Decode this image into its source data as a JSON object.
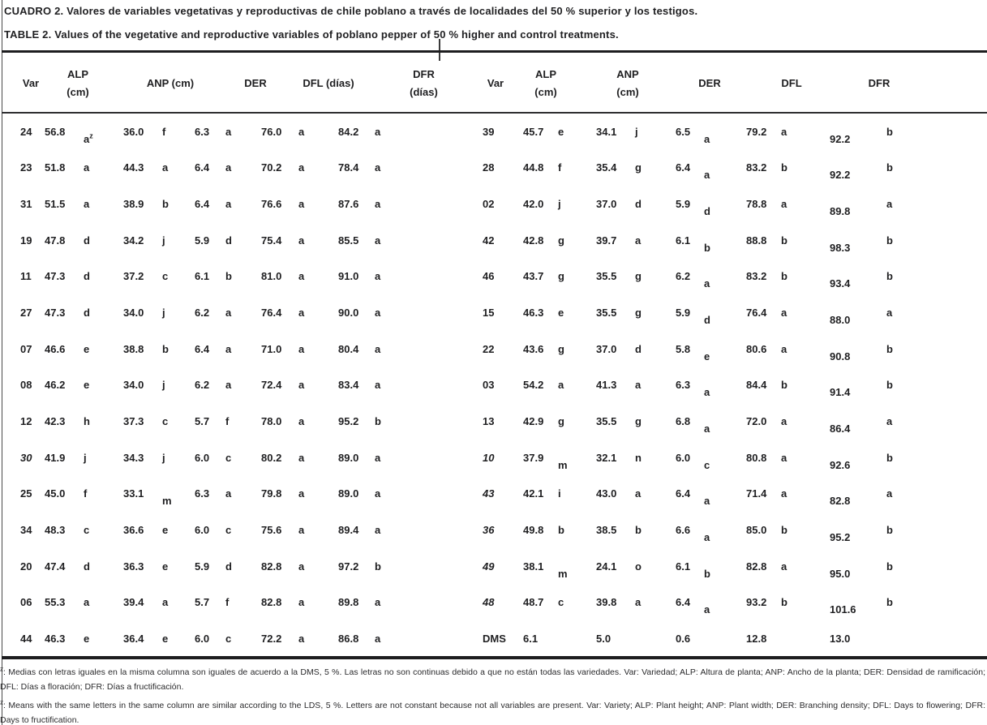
{
  "titles": {
    "spanish": "CUADRO 2. Valores de variables vegetativas y reproductivas de chile poblano a través de localidades del 50 % superior y los testigos.",
    "english": "TABLE 2. Values of the vegetative and reproductive variables of poblano pepper of 50 % higher and control treatments."
  },
  "table": {
    "left": {
      "headers": {
        "var": "Var",
        "alp_line1": "ALP",
        "alp_line2": "(cm)",
        "anp": "ANP (cm)",
        "der": "DER",
        "dfl": "DFL (días)",
        "dfr_line1": "DFR",
        "dfr_line2": "(días)"
      },
      "rows": [
        {
          "var": "24",
          "alp": "56.8",
          "alp_l": "a",
          "alp_sup": "z",
          "anp": "36.0",
          "anp_l": "f",
          "der": "6.3",
          "der_l": "a",
          "dfl": "76.0",
          "dfl_l": "a",
          "dfr": "84.2",
          "dfr_l": "a",
          "drops": [
            "alp_l"
          ]
        },
        {
          "var": "23",
          "alp": "51.8",
          "alp_l": "a",
          "anp": "44.3",
          "anp_l": "a",
          "der": "6.4",
          "der_l": "a",
          "dfl": "70.2",
          "dfl_l": "a",
          "dfr": "78.4",
          "dfr_l": "a"
        },
        {
          "var": "31",
          "alp": "51.5",
          "alp_l": "a",
          "anp": "38.9",
          "anp_l": "b",
          "der": "6.4",
          "der_l": "a",
          "dfl": "76.6",
          "dfl_l": "a",
          "dfr": "87.6",
          "dfr_l": "a"
        },
        {
          "var": "19",
          "alp": "47.8",
          "alp_l": "d",
          "anp": "34.2",
          "anp_l": "j",
          "der": "5.9",
          "der_l": "d",
          "dfl": "75.4",
          "dfl_l": "a",
          "dfr": "85.5",
          "dfr_l": "a"
        },
        {
          "var": "11",
          "alp": "47.3",
          "alp_l": "d",
          "anp": "37.2",
          "anp_l": "c",
          "der": "6.1",
          "der_l": "b",
          "dfl": "81.0",
          "dfl_l": "a",
          "dfr": "91.0",
          "dfr_l": "a"
        },
        {
          "var": "27",
          "alp": "47.3",
          "alp_l": "d",
          "anp": "34.0",
          "anp_l": "j",
          "der": "6.2",
          "der_l": "a",
          "dfl": "76.4",
          "dfl_l": "a",
          "dfr": "90.0",
          "dfr_l": "a"
        },
        {
          "var": "07",
          "alp": "46.6",
          "alp_l": "e",
          "anp": "38.8",
          "anp_l": "b",
          "der": "6.4",
          "der_l": "a",
          "dfl": "71.0",
          "dfl_l": "a",
          "dfr": "80.4",
          "dfr_l": "a"
        },
        {
          "var": "08",
          "alp": "46.2",
          "alp_l": "e",
          "anp": "34.0",
          "anp_l": "j",
          "der": "6.2",
          "der_l": "a",
          "dfl": "72.4",
          "dfl_l": "a",
          "dfr": "83.4",
          "dfr_l": "a"
        },
        {
          "var": "12",
          "alp": "42.3",
          "alp_l": "h",
          "anp": "37.3",
          "anp_l": "c",
          "der": "5.7",
          "der_l": "f",
          "dfl": "78.0",
          "dfl_l": "a",
          "dfr": "95.2",
          "dfr_l": "b"
        },
        {
          "var": "30",
          "italic": true,
          "alp": "41.9",
          "alp_l": "j",
          "anp": "34.3",
          "anp_l": "j",
          "der": "6.0",
          "der_l": "c",
          "dfl": "80.2",
          "dfl_l": "a",
          "dfr": "89.0",
          "dfr_l": "a"
        },
        {
          "var": "25",
          "alp": "45.0",
          "alp_l": "f",
          "anp": "33.1",
          "anp_l": "m",
          "der": "6.3",
          "der_l": "a",
          "dfl": "79.8",
          "dfl_l": "a",
          "dfr": "89.0",
          "dfr_l": "a",
          "drops": [
            "anp_l"
          ]
        },
        {
          "var": "34",
          "alp": "48.3",
          "alp_l": "c",
          "anp": "36.6",
          "anp_l": "e",
          "der": "6.0",
          "der_l": "c",
          "dfl": "75.6",
          "dfl_l": "a",
          "dfr": "89.4",
          "dfr_l": "a"
        },
        {
          "var": "20",
          "alp": "47.4",
          "alp_l": "d",
          "anp": "36.3",
          "anp_l": "e",
          "der": "5.9",
          "der_l": "d",
          "dfl": "82.8",
          "dfl_l": "a",
          "dfr": "97.2",
          "dfr_l": "b"
        },
        {
          "var": "06",
          "alp": "55.3",
          "alp_l": "a",
          "anp": "39.4",
          "anp_l": "a",
          "der": "5.7",
          "der_l": "f",
          "dfl": "82.8",
          "dfl_l": "a",
          "dfr": "89.8",
          "dfr_l": "a"
        },
        {
          "var": "44",
          "alp": "46.3",
          "alp_l": "e",
          "anp": "36.4",
          "anp_l": "e",
          "der": "6.0",
          "der_l": "c",
          "dfl": "72.2",
          "dfl_l": "a",
          "dfr": "86.8",
          "dfr_l": "a"
        }
      ]
    },
    "right": {
      "headers": {
        "var": "Var",
        "alp_line1": "ALP",
        "alp_line2": "(cm)",
        "anp_line1": "ANP",
        "anp_line2": "(cm)",
        "der": "DER",
        "dfl": "DFL",
        "dfr": "DFR"
      },
      "rows": [
        {
          "var": "39",
          "alp": "45.7",
          "alp_l": "e",
          "anp": "34.1",
          "anp_l": "j",
          "der": "6.5",
          "der_l": "a",
          "dfl": "79.2",
          "dfl_l": "a",
          "dfr": "92.2",
          "dfr_l": "b",
          "drops": [
            "der_l",
            "dfr"
          ]
        },
        {
          "var": "28",
          "alp": "44.8",
          "alp_l": "f",
          "anp": "35.4",
          "anp_l": "g",
          "der": "6.4",
          "der_l": "a",
          "dfl": "83.2",
          "dfl_l": "b",
          "dfr": "92.2",
          "dfr_l": "b",
          "drops": [
            "der_l",
            "dfr"
          ]
        },
        {
          "var": "02",
          "alp": "42.0",
          "alp_l": "j",
          "anp": "37.0",
          "anp_l": "d",
          "der": "5.9",
          "der_l": "d",
          "dfl": "78.8",
          "dfl_l": "a",
          "dfr": "89.8",
          "dfr_l": "a",
          "drops": [
            "der_l",
            "dfr"
          ]
        },
        {
          "var": "42",
          "alp": "42.8",
          "alp_l": "g",
          "anp": "39.7",
          "anp_l": "a",
          "der": "6.1",
          "der_l": "b",
          "dfl": "88.8",
          "dfl_l": "b",
          "dfr": "98.3",
          "dfr_l": "b",
          "drops": [
            "der_l",
            "dfr"
          ]
        },
        {
          "var": "46",
          "alp": "43.7",
          "alp_l": "g",
          "anp": "35.5",
          "anp_l": "g",
          "der": "6.2",
          "der_l": "a",
          "dfl": "83.2",
          "dfl_l": "b",
          "dfr": "93.4",
          "dfr_l": "b",
          "drops": [
            "der_l",
            "dfr"
          ]
        },
        {
          "var": "15",
          "alp": "46.3",
          "alp_l": "e",
          "anp": "35.5",
          "anp_l": "g",
          "der": "5.9",
          "der_l": "d",
          "dfl": "76.4",
          "dfl_l": "a",
          "dfr": "88.0",
          "dfr_l": "a",
          "drops": [
            "der_l",
            "dfr"
          ]
        },
        {
          "var": "22",
          "alp": "43.6",
          "alp_l": "g",
          "anp": "37.0",
          "anp_l": "d",
          "der": "5.8",
          "der_l": "e",
          "dfl": "80.6",
          "dfl_l": "a",
          "dfr": "90.8",
          "dfr_l": "b",
          "drops": [
            "der_l",
            "dfr"
          ]
        },
        {
          "var": "03",
          "alp": "54.2",
          "alp_l": "a",
          "anp": "41.3",
          "anp_l": "a",
          "der": "6.3",
          "der_l": "a",
          "dfl": "84.4",
          "dfl_l": "b",
          "dfr": "91.4",
          "dfr_l": "b",
          "drops": [
            "der_l",
            "dfr"
          ]
        },
        {
          "var": "13",
          "alp": "42.9",
          "alp_l": "g",
          "anp": "35.5",
          "anp_l": "g",
          "der": "6.8",
          "der_l": "a",
          "dfl": "72.0",
          "dfl_l": "a",
          "dfr": "86.4",
          "dfr_l": "a",
          "drops": [
            "der_l",
            "dfr"
          ]
        },
        {
          "var": "10",
          "italic": true,
          "alp": "37.9",
          "alp_l": "m",
          "anp": "32.1",
          "anp_l": "n",
          "der": "6.0",
          "der_l": "c",
          "dfl": "80.8",
          "dfl_l": "a",
          "dfr": "92.6",
          "dfr_l": "b",
          "drops": [
            "alp_l",
            "der_l",
            "dfr"
          ]
        },
        {
          "var": "43",
          "italic": true,
          "alp": "42.1",
          "alp_l": "i",
          "anp": "43.0",
          "anp_l": "a",
          "der": "6.4",
          "der_l": "a",
          "dfl": "71.4",
          "dfl_l": "a",
          "dfr": "82.8",
          "dfr_l": "a",
          "drops": [
            "der_l",
            "dfr"
          ]
        },
        {
          "var": "36",
          "italic": true,
          "alp": "49.8",
          "alp_l": "b",
          "anp": "38.5",
          "anp_l": "b",
          "der": "6.6",
          "der_l": "a",
          "dfl": "85.0",
          "dfl_l": "b",
          "dfr": "95.2",
          "dfr_l": "b",
          "drops": [
            "der_l",
            "dfr"
          ]
        },
        {
          "var": "49",
          "italic": true,
          "alp": "38.1",
          "alp_l": "m",
          "anp": "24.1",
          "anp_l": "o",
          "der": "6.1",
          "der_l": "b",
          "dfl": "82.8",
          "dfl_l": "a",
          "dfr": "95.0",
          "dfr_l": "b",
          "drops": [
            "alp_l",
            "der_l",
            "dfr"
          ]
        },
        {
          "var": "48",
          "italic": true,
          "alp": "48.7",
          "alp_l": "c",
          "anp": "39.8",
          "anp_l": "a",
          "der": "6.4",
          "der_l": "a",
          "dfl": "93.2",
          "dfl_l": "b",
          "dfr": "101.6",
          "dfr_l": "b",
          "drops": [
            "der_l",
            "dfr"
          ]
        },
        {
          "var": "DMS",
          "alp": "6.1",
          "alp_l": "",
          "anp": "5.0",
          "anp_l": "",
          "der": "0.6",
          "der_l": "",
          "dfl": "12.8",
          "dfl_l": "",
          "dfr": "13.0",
          "dfr_l": ""
        }
      ]
    }
  },
  "footnotes": {
    "marker": "z",
    "spanish": ": Medias con letras iguales en la misma columna son iguales de acuerdo a la DMS, 5 %. Las letras no son continuas debido a que no están todas las variedades. Var: Variedad; ALP: Altura de planta; ANP: Ancho de la planta; DER: Densidad de ramificación; DFL: Días a floración; DFR: Días a fructificación.",
    "english": ": Means with the same letters in the same column are similar according to the LDS, 5 %. Letters are not constant because not all variables are present. Var: Variety; ALP: Plant height; ANP: Plant width; DER: Branching density; DFL: Days to flowering; DFR: Days to fructification."
  }
}
